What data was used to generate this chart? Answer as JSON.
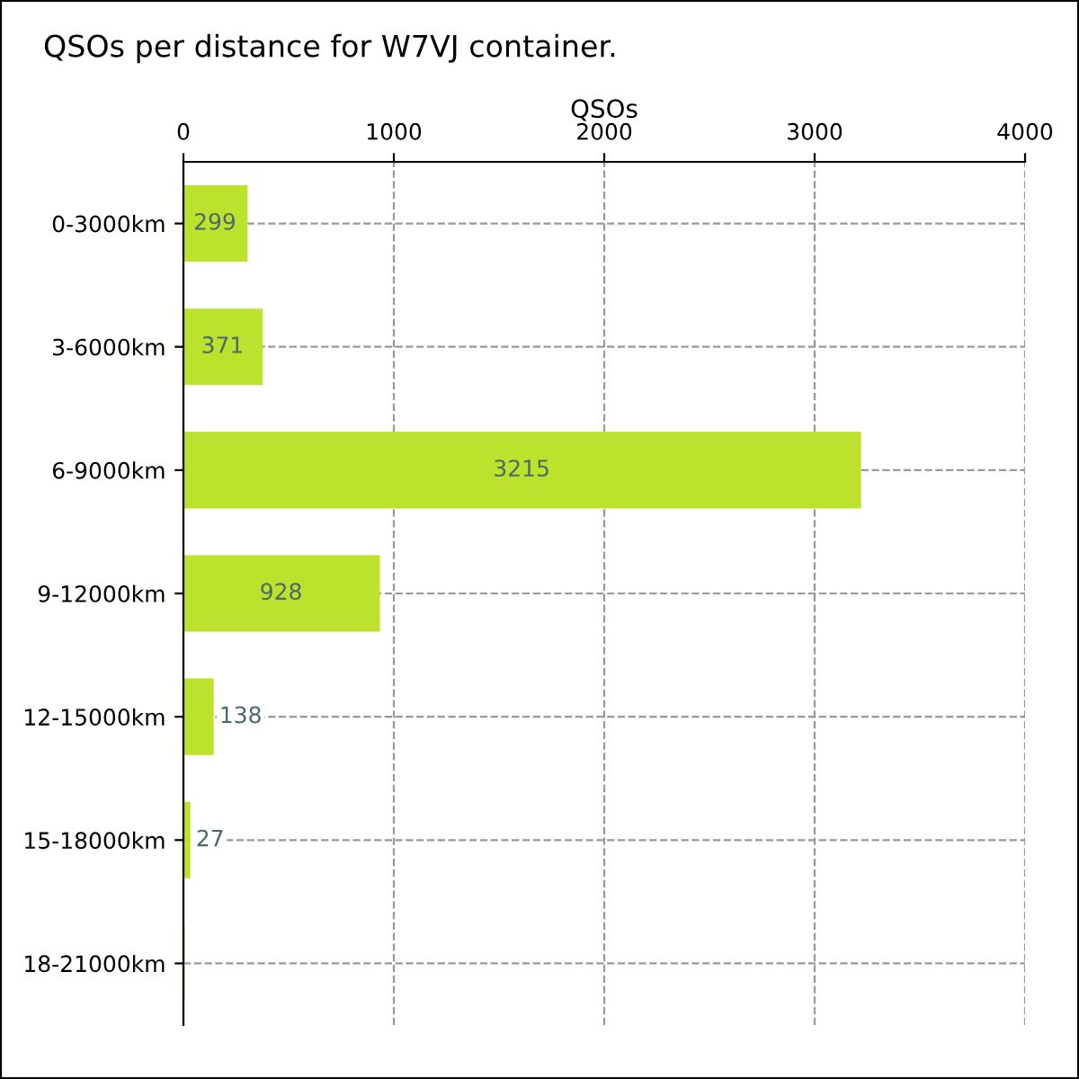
{
  "chart_data": {
    "type": "bar",
    "orientation": "horizontal",
    "title": "QSOs per distance for W7VJ container.",
    "xlabel": "QSOs",
    "categories": [
      "0-3000km",
      "3-6000km",
      "6-9000km",
      "9-12000km",
      "12-15000km",
      "15-18000km",
      "18-21000km"
    ],
    "values": [
      299,
      371,
      3215,
      928,
      138,
      27,
      0
    ],
    "value_labels": [
      "299",
      "371",
      "3215",
      "928",
      "138",
      "27",
      null
    ],
    "color": "#bde22e",
    "xlim": [
      0,
      4000
    ],
    "xticks": [
      0,
      1000,
      2000,
      3000,
      4000
    ],
    "grid": true
  }
}
